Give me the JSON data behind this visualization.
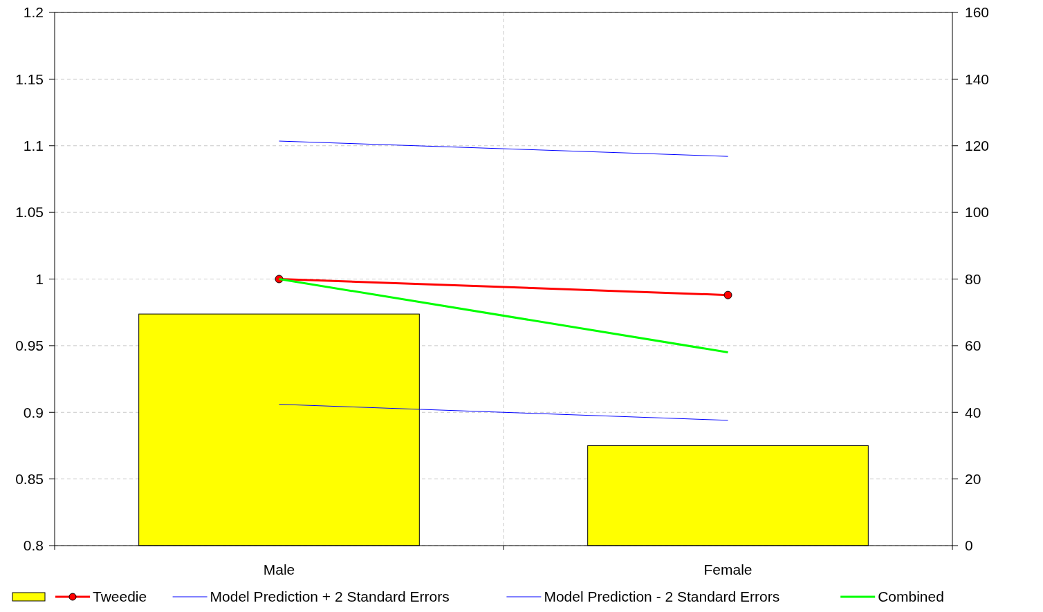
{
  "chart_data": {
    "type": "line",
    "categories": [
      "Male",
      "Female"
    ],
    "series": [
      {
        "type": "bar",
        "axis": "y2",
        "color": "#ffff00",
        "values": [
          69.5,
          30
        ]
      },
      {
        "name": "Tweedie",
        "color": "#ff0000",
        "marker": "circle",
        "values": [
          1.0,
          0.988
        ]
      },
      {
        "name": "Model Prediction + 2 Standard Errors",
        "color": "#0000ff",
        "marker": "none",
        "values": [
          1.1035,
          1.092
        ]
      },
      {
        "name": "Model Prediction - 2 Standard Errors",
        "color": "#0000ff",
        "marker": "none",
        "values": [
          0.906,
          0.894
        ]
      },
      {
        "name": "Combined",
        "color": "#00ff00",
        "marker": "none",
        "values": [
          1.0,
          0.945
        ]
      }
    ],
    "ylim": [
      0.8,
      1.2
    ],
    "yticks": [
      0.8,
      0.85,
      0.9,
      0.95,
      1,
      1.05,
      1.1,
      1.15,
      1.2
    ],
    "y2lim": [
      0,
      160
    ],
    "y2ticks": [
      0,
      20,
      40,
      60,
      80,
      100,
      120,
      140,
      160
    ],
    "grid": true,
    "legend": "bottom",
    "line_style": "solid"
  }
}
